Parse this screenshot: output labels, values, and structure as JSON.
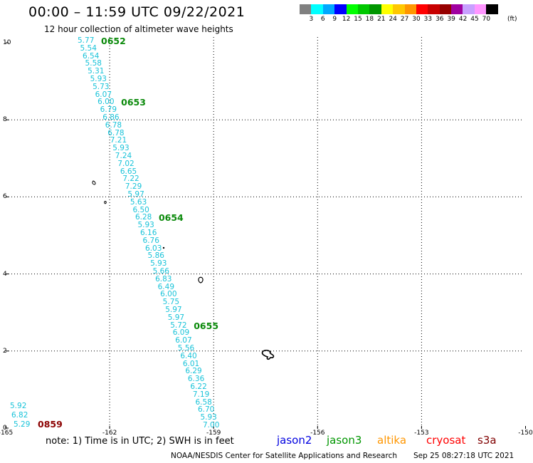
{
  "header": {
    "title": "00:00 – 11:59 UTC 09/22/2021",
    "subtitle": "12 hour collection of altimeter wave heights"
  },
  "colorbar": {
    "colors": [
      "#808080",
      "#00ffff",
      "#00a8ff",
      "#0000ff",
      "#00ff00",
      "#00c800",
      "#009600",
      "#ffff00",
      "#ffc800",
      "#ff9600",
      "#ff0000",
      "#c80000",
      "#960000",
      "#a000a0",
      "#c8a0ff",
      "#ff96ff",
      "#000000"
    ],
    "labels": [
      "3",
      "6",
      "9",
      "12",
      "15",
      "18",
      "21",
      "24",
      "27",
      "30",
      "33",
      "36",
      "39",
      "42",
      "45",
      "70"
    ],
    "unit": "(ft)"
  },
  "axes": {
    "x_ticks": [
      "-165",
      "-162",
      "-159",
      "-156",
      "-153",
      "-150"
    ],
    "y_ticks": [
      "10",
      "8",
      "6",
      "4",
      "2",
      "0"
    ]
  },
  "track_values": [
    "5.77",
    "5.54",
    "6.54",
    "5.58",
    "5.31",
    "5.93",
    "5.73",
    "6.07",
    "6.00",
    "6.79",
    "6.86",
    "6.78",
    "6.78",
    "7.21",
    "5.93",
    "7.24",
    "7.02",
    "6.65",
    "7.22",
    "7.29",
    "5.97",
    "5.63",
    "6.50",
    "6.28",
    "5.93",
    "6.16",
    "6.76",
    "6.03",
    "5.86",
    "5.93",
    "5.66",
    "6.83",
    "6.49",
    "6.00",
    "5.75",
    "5.97",
    "5.97",
    "5.72",
    "6.09",
    "6.07",
    "5.56",
    "6.40",
    "6.01",
    "6.29",
    "6.36",
    "6.22",
    "7.19",
    "6.58",
    "6.70",
    "5.93",
    "7.00"
  ],
  "track_times": [
    {
      "label": "0652",
      "row": 0
    },
    {
      "label": "0653",
      "row": 8
    },
    {
      "label": "0654",
      "row": 23
    },
    {
      "label": "0655",
      "row": 37
    }
  ],
  "corner_values": [
    "5.92",
    "6.82",
    "5.29"
  ],
  "corner_time": "0859",
  "footer": {
    "note": "note: 1) Time is in UTC; 2) SWH is in feet",
    "satellites": [
      {
        "name": "jason2",
        "color": "#0000e0"
      },
      {
        "name": "jason3",
        "color": "#009600"
      },
      {
        "name": "altika",
        "color": "#ff9600"
      },
      {
        "name": "cryosat",
        "color": "#ff0000"
      },
      {
        "name": "s3a",
        "color": "#800000"
      }
    ],
    "credit": "NOAA/NESDIS Center for Satellite Applications and Research",
    "timestamp": "Sep 25 08:27:18 UTC 2021"
  }
}
